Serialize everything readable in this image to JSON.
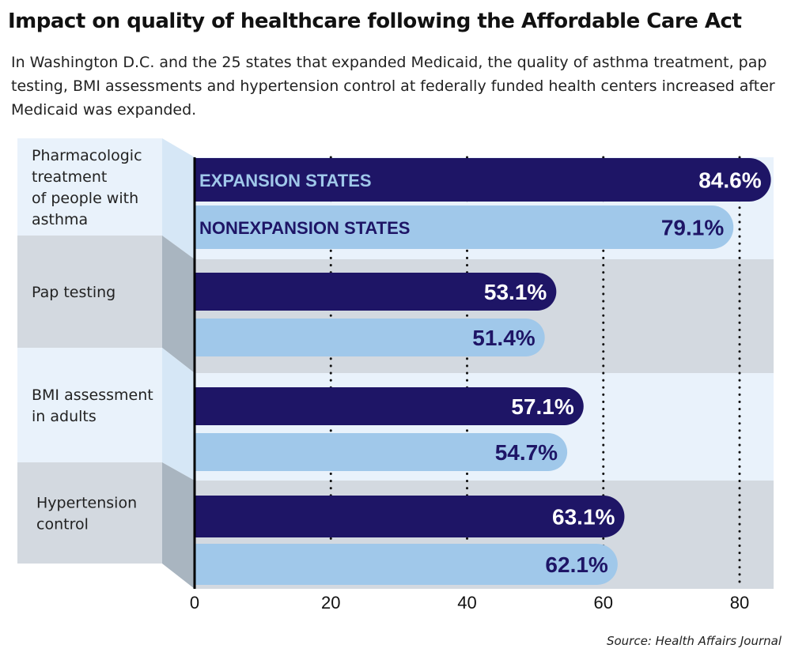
{
  "title": "Impact on quality of healthcare following the Affordable Care Act",
  "subtitle": "In Washington D.C. and the 25 states that expanded Medicaid, the quality of asthma treatment, pap testing, BMI assessments and hypertension control at federally funded health centers increased after Medicaid was expanded.",
  "source": "Source: Health Affairs Journal",
  "colors": {
    "expansion": "#1e1566",
    "nonexpansion": "#a0c8ea",
    "band_light": "#e9f2fb",
    "band_gray": "#d3d9e0"
  },
  "chart_data": {
    "type": "bar",
    "orientation": "horizontal",
    "categories": [
      [
        "Pharmacologic",
        "treatment",
        "of people with",
        "asthma"
      ],
      [
        "Pap testing"
      ],
      [
        "BMI assessment",
        "in adults"
      ],
      [
        "Hypertension",
        "control"
      ]
    ],
    "series": [
      {
        "name": "Expansion states",
        "values": [
          84.6,
          53.1,
          57.1,
          63.1
        ],
        "labels": [
          "84.6%",
          "53.1%",
          "57.1%",
          "63.1%"
        ]
      },
      {
        "name": "Nonexpansion states",
        "values": [
          79.1,
          51.4,
          54.7,
          62.1
        ],
        "labels": [
          "79.1%",
          "51.4%",
          "54.7%",
          "62.1%"
        ]
      }
    ],
    "xticks": [
      "0",
      "20",
      "40",
      "60",
      "80"
    ],
    "xtick_values": [
      0,
      20,
      40,
      60,
      80
    ],
    "xlim": [
      0,
      85
    ],
    "grid": "dotted vertical",
    "legend": "inside first bars"
  }
}
